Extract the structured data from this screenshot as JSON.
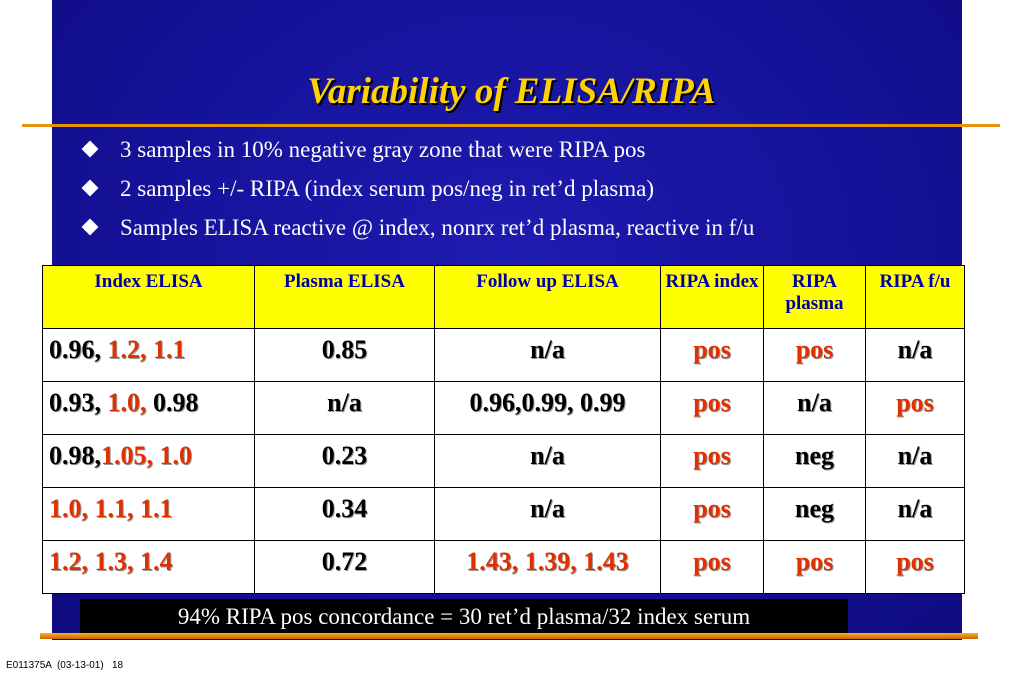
{
  "title": "Variability of ELISA/RIPA",
  "bullets": [
    "3 samples in 10% negative gray zone that were RIPA pos",
    "2 samples +/- RIPA (index serum pos/neg in ret’d plasma)",
    "Samples ELISA reactive @ index,  nonrx ret’d plasma, reactive in f/u"
  ],
  "table": {
    "headers": [
      "Index ELISA",
      "Plasma ELISA",
      "Follow up ELISA",
      "RIPA index",
      "RIPA plasma",
      "RIPA f/u"
    ],
    "rows": [
      [
        [
          {
            "text": "0.96, ",
            "red": false
          },
          {
            "text": "1.2, 1.1",
            "red": true
          }
        ],
        [
          {
            "text": "0.85",
            "red": false
          }
        ],
        [
          {
            "text": "n/a",
            "red": false
          }
        ],
        [
          {
            "text": "pos",
            "red": true
          }
        ],
        [
          {
            "text": "pos",
            "red": true
          }
        ],
        [
          {
            "text": "n/a",
            "red": false
          }
        ]
      ],
      [
        [
          {
            "text": "0.93, ",
            "red": false
          },
          {
            "text": "1.0, ",
            "red": true
          },
          {
            "text": "0.98",
            "red": false
          }
        ],
        [
          {
            "text": "n/a",
            "red": false
          }
        ],
        [
          {
            "text": "0.96,0.99, 0.99",
            "red": false
          }
        ],
        [
          {
            "text": "pos",
            "red": true
          }
        ],
        [
          {
            "text": "n/a",
            "red": false
          }
        ],
        [
          {
            "text": "pos",
            "red": true
          }
        ]
      ],
      [
        [
          {
            "text": "0.98,",
            "red": false
          },
          {
            "text": "1.05, 1.0",
            "red": true
          }
        ],
        [
          {
            "text": "0.23",
            "red": false
          }
        ],
        [
          {
            "text": "n/a",
            "red": false
          }
        ],
        [
          {
            "text": "pos",
            "red": true
          }
        ],
        [
          {
            "text": "neg",
            "red": false
          }
        ],
        [
          {
            "text": "n/a",
            "red": false
          }
        ]
      ],
      [
        [
          {
            "text": "1.0, 1.1, 1.1",
            "red": true
          }
        ],
        [
          {
            "text": "0.34",
            "red": false
          }
        ],
        [
          {
            "text": "n/a",
            "red": false
          }
        ],
        [
          {
            "text": "pos",
            "red": true
          }
        ],
        [
          {
            "text": "neg",
            "red": false
          }
        ],
        [
          {
            "text": "n/a",
            "red": false
          }
        ]
      ],
      [
        [
          {
            "text": "1.2, 1.3, 1.4",
            "red": true
          }
        ],
        [
          {
            "text": "0.72",
            "red": false
          }
        ],
        [
          {
            "text": "1.43, 1.39, 1.43",
            "red": true
          }
        ],
        [
          {
            "text": "pos",
            "red": true
          }
        ],
        [
          {
            "text": "pos",
            "red": true
          }
        ],
        [
          {
            "text": "pos",
            "red": true
          }
        ]
      ]
    ]
  },
  "footer_note": "94% RIPA  pos  concordance = 30 ret’d plasma/32 index serum",
  "slide_id": "E011375A  (03-13-01)   18",
  "colors": {
    "title": "#ffd200",
    "background": "#15129a",
    "header_fill": "#ffff00",
    "header_text": "#0000a0",
    "highlight": "#e03000",
    "rule": "#e8930a"
  }
}
